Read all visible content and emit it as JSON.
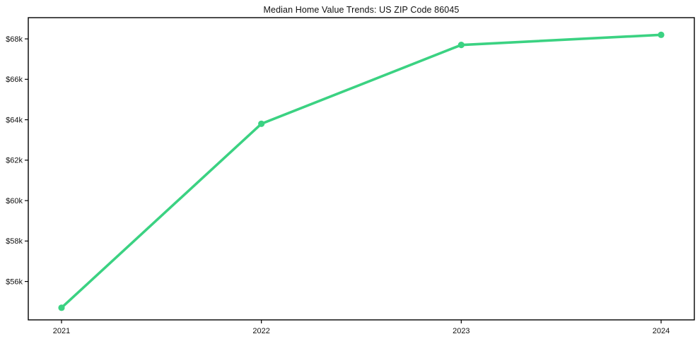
{
  "chart_data": {
    "type": "line",
    "title": "Median Home Value Trends: US ZIP Code 86045",
    "x": [
      "2021",
      "2022",
      "2023",
      "2024"
    ],
    "series": [
      {
        "name": "Median Home Value",
        "values": [
          54700,
          63800,
          67700,
          68200
        ]
      }
    ],
    "xlabel": "",
    "ylabel": "",
    "y_ticks": [
      {
        "value": 56000,
        "label": "$56k"
      },
      {
        "value": 58000,
        "label": "$58k"
      },
      {
        "value": 60000,
        "label": "$60k"
      },
      {
        "value": 62000,
        "label": "$62k"
      },
      {
        "value": 64000,
        "label": "$64k"
      },
      {
        "value": 66000,
        "label": "$66k"
      },
      {
        "value": 68000,
        "label": "$68k"
      }
    ],
    "ylim": [
      54100,
      69050
    ],
    "grid": false,
    "legend_position": "none",
    "marker": "circle",
    "colors": {
      "line": "#3bd282",
      "axis": "#000000",
      "text": "#111111",
      "background": "#ffffff"
    }
  }
}
